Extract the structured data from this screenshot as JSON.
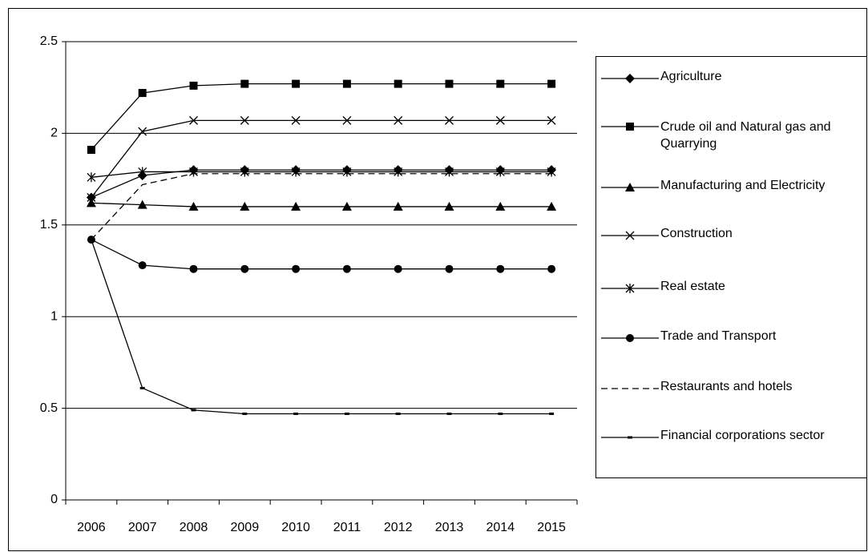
{
  "chart_data": {
    "type": "line",
    "categories": [
      "2006",
      "2007",
      "2008",
      "2009",
      "2010",
      "2011",
      "2012",
      "2013",
      "2014",
      "2015"
    ],
    "ylim": [
      0,
      2.5
    ],
    "yticks": [
      0,
      0.5,
      1,
      1.5,
      2,
      2.5
    ],
    "grid": true,
    "legend": "right",
    "series": [
      {
        "name": "Agriculture",
        "color": "#000000",
        "marker": "diamond",
        "values": [
          1.65,
          1.77,
          1.8,
          1.8,
          1.8,
          1.8,
          1.8,
          1.8,
          1.8,
          1.8
        ]
      },
      {
        "name": "Crude oil and Natural gas and Quarrying",
        "color": "#000000",
        "marker": "square",
        "values": [
          1.91,
          2.22,
          2.26,
          2.27,
          2.27,
          2.27,
          2.27,
          2.27,
          2.27,
          2.27
        ]
      },
      {
        "name": "Manufacturing and Electricity",
        "color": "#000000",
        "marker": "triangle",
        "values": [
          1.62,
          1.61,
          1.6,
          1.6,
          1.6,
          1.6,
          1.6,
          1.6,
          1.6,
          1.6
        ]
      },
      {
        "name": "Construction",
        "color": "#000000",
        "marker": "x",
        "values": [
          1.65,
          2.01,
          2.07,
          2.07,
          2.07,
          2.07,
          2.07,
          2.07,
          2.07,
          2.07
        ]
      },
      {
        "name": "Real estate",
        "color": "#000000",
        "marker": "asterisk",
        "values": [
          1.76,
          1.79,
          1.79,
          1.79,
          1.79,
          1.79,
          1.79,
          1.79,
          1.79,
          1.79
        ]
      },
      {
        "name": "Trade and Transport",
        "color": "#000000",
        "marker": "circle",
        "values": [
          1.42,
          1.28,
          1.26,
          1.26,
          1.26,
          1.26,
          1.26,
          1.26,
          1.26,
          1.26
        ]
      },
      {
        "name": "Restaurants and hotels",
        "color": "#000000",
        "marker": "none",
        "dash": true,
        "values": [
          1.42,
          1.72,
          1.78,
          1.78,
          1.78,
          1.78,
          1.78,
          1.78,
          1.78,
          1.78
        ]
      },
      {
        "name": "Financial corporations sector",
        "color": "#000000",
        "marker": "dash",
        "values": [
          1.42,
          0.61,
          0.49,
          0.47,
          0.47,
          0.47,
          0.47,
          0.47,
          0.47,
          0.47
        ]
      }
    ]
  }
}
